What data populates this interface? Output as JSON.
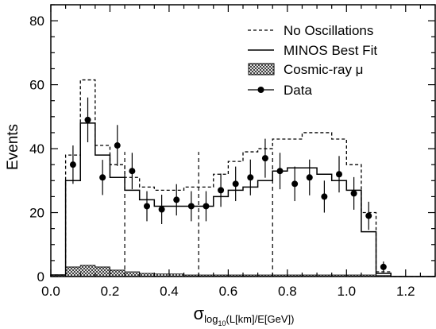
{
  "chart_data": {
    "type": "histogram",
    "xlabel": "σ",
    "xlabel_sub": "log",
    "xlabel_subsub": "10",
    "xlabel_tail": "(L[km]/E[GeV])",
    "ylabel": "Events",
    "xlim": [
      0.0,
      1.3
    ],
    "ylim": [
      0,
      85
    ],
    "x_ticks": [
      {
        "value": 0.0,
        "label": "0.0"
      },
      {
        "value": 0.2,
        "label": "0.2"
      },
      {
        "value": 0.4,
        "label": "0.4"
      },
      {
        "value": 0.6,
        "label": "0.6"
      },
      {
        "value": 0.8,
        "label": "0.8"
      },
      {
        "value": 1.0,
        "label": "1.0"
      },
      {
        "value": 1.2,
        "label": "1.2"
      }
    ],
    "y_ticks": [
      {
        "value": 0,
        "label": "0"
      },
      {
        "value": 20,
        "label": "20"
      },
      {
        "value": 40,
        "label": "40"
      },
      {
        "value": 60,
        "label": "60"
      },
      {
        "value": 80,
        "label": "80"
      }
    ],
    "legend": [
      {
        "name": "No Oscillations",
        "style": "dashed-line"
      },
      {
        "name": "MINOS Best Fit",
        "style": "solid-line"
      },
      {
        "name": "Cosmic-ray μ",
        "style": "hatched-box"
      },
      {
        "name": "Data",
        "style": "marker-errorbar"
      }
    ],
    "legend_position": "top-right",
    "bin_edges": [
      0.0,
      0.05,
      0.1,
      0.15,
      0.2,
      0.25,
      0.3,
      0.35,
      0.4,
      0.45,
      0.5,
      0.55,
      0.6,
      0.65,
      0.7,
      0.75,
      0.8,
      0.85,
      0.9,
      0.95,
      1.0,
      1.05,
      1.1,
      1.15,
      1.3
    ],
    "no_oscillations": [
      0.5,
      38,
      61.5,
      41,
      35,
      31,
      28,
      27,
      27,
      28,
      28,
      32,
      36,
      39,
      40,
      43,
      43,
      45,
      45,
      43,
      35,
      20,
      1.5,
      0
    ],
    "best_fit": [
      0.5,
      30,
      48,
      38,
      31,
      27,
      24,
      22,
      22,
      22,
      22,
      25,
      27,
      28,
      30,
      33,
      34,
      34,
      32,
      30,
      27,
      14,
      1,
      0
    ],
    "cosmic_ray": [
      0.5,
      3,
      3.5,
      3,
      2,
      1.5,
      1,
      0.8,
      0.8,
      0.5,
      0.5,
      0.5,
      0.5,
      0.5,
      0.5,
      0.5,
      0.5,
      0.5,
      0.5,
      0.5,
      0.5,
      0.5,
      0.3,
      0
    ],
    "data_points": [
      {
        "x": 0.075,
        "y": 35,
        "err": 6
      },
      {
        "x": 0.125,
        "y": 49,
        "err": 7
      },
      {
        "x": 0.175,
        "y": 31,
        "err": 5.5
      },
      {
        "x": 0.225,
        "y": 41,
        "err": 6.4
      },
      {
        "x": 0.275,
        "y": 33,
        "err": 5.7
      },
      {
        "x": 0.325,
        "y": 22,
        "err": 4.7
      },
      {
        "x": 0.375,
        "y": 21,
        "err": 4.6
      },
      {
        "x": 0.425,
        "y": 24,
        "err": 4.9
      },
      {
        "x": 0.475,
        "y": 22,
        "err": 4.7
      },
      {
        "x": 0.525,
        "y": 22,
        "err": 4.7
      },
      {
        "x": 0.575,
        "y": 27,
        "err": 5.2
      },
      {
        "x": 0.625,
        "y": 29,
        "err": 5.4
      },
      {
        "x": 0.675,
        "y": 31,
        "err": 5.6
      },
      {
        "x": 0.725,
        "y": 37,
        "err": 6.1
      },
      {
        "x": 0.775,
        "y": 33,
        "err": 5.7
      },
      {
        "x": 0.825,
        "y": 29,
        "err": 5.4
      },
      {
        "x": 0.875,
        "y": 31,
        "err": 5.6
      },
      {
        "x": 0.925,
        "y": 25,
        "err": 5
      },
      {
        "x": 0.975,
        "y": 32,
        "err": 5.7
      },
      {
        "x": 1.025,
        "y": 26,
        "err": 5.1
      },
      {
        "x": 1.075,
        "y": 19,
        "err": 4.4
      },
      {
        "x": 1.125,
        "y": 3,
        "err": 1.7
      }
    ],
    "vertical_dashed_lines": [
      0.25,
      0.5,
      0.75
    ]
  }
}
